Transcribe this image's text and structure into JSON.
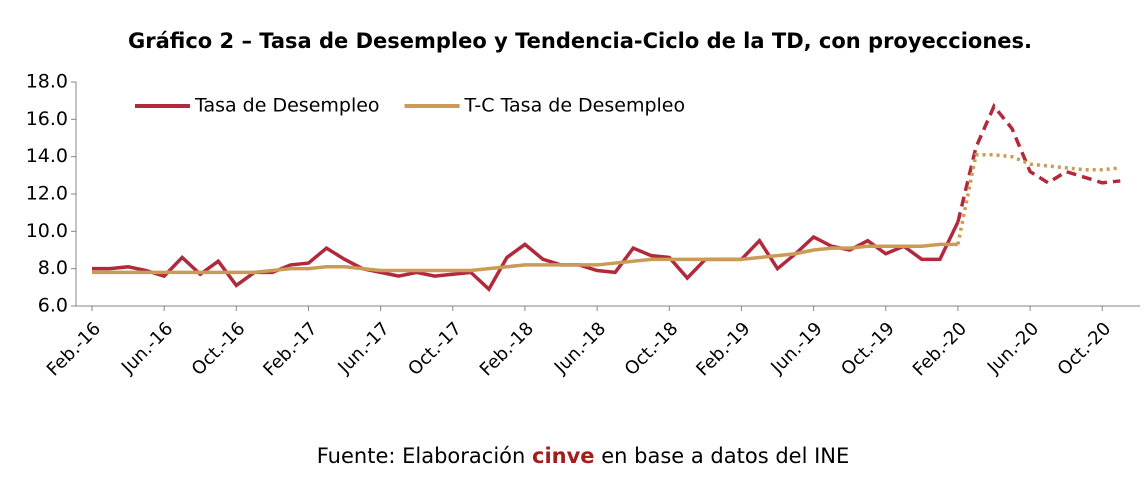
{
  "chart_data": {
    "type": "line",
    "title": "Gráfico 2 – Tasa de Desempleo y Tendencia-Ciclo de la TD, con proyecciones.",
    "categories": [
      "Feb.-16",
      null,
      null,
      null,
      "Jun.-16",
      null,
      null,
      null,
      "Oct.-16",
      null,
      null,
      null,
      "Feb.-17",
      null,
      null,
      null,
      "Jun.-17",
      null,
      null,
      null,
      "Oct.-17",
      null,
      null,
      null,
      "Feb.-18",
      null,
      null,
      null,
      "Jun.-18",
      null,
      null,
      null,
      "Oct.-18",
      null,
      null,
      null,
      "Feb.-19",
      null,
      null,
      null,
      "Jun.-19",
      null,
      null,
      null,
      "Oct.-19",
      null,
      null,
      null,
      "Feb.-20",
      null,
      null,
      null,
      "Jun.-20",
      null,
      null,
      null,
      "Oct.-20",
      null
    ],
    "series": [
      {
        "name": "Tasa de Desempleo",
        "color": "#b12a3c",
        "projection_style": "dashed",
        "values": [
          8.0,
          8.0,
          8.1,
          7.9,
          7.6,
          8.6,
          7.7,
          8.4,
          7.1,
          7.8,
          7.8,
          8.2,
          8.3,
          9.1,
          8.5,
          8.0,
          7.8,
          7.6,
          7.8,
          7.6,
          7.7,
          7.8,
          6.9,
          8.6,
          9.3,
          8.5,
          8.2,
          8.2,
          7.9,
          7.8,
          9.1,
          8.7,
          8.6,
          7.5,
          8.5,
          8.5,
          8.5,
          9.5,
          8.0,
          8.8,
          9.7,
          9.2,
          9.0,
          9.5,
          8.8,
          9.2,
          8.5,
          8.5,
          10.5,
          null,
          null,
          null,
          null,
          null,
          null,
          null,
          null,
          null
        ],
        "projection": [
          null,
          null,
          null,
          null,
          null,
          null,
          null,
          null,
          null,
          null,
          null,
          null,
          null,
          null,
          null,
          null,
          null,
          null,
          null,
          null,
          null,
          null,
          null,
          null,
          null,
          null,
          null,
          null,
          null,
          null,
          null,
          null,
          null,
          null,
          null,
          null,
          null,
          null,
          null,
          null,
          null,
          null,
          null,
          null,
          null,
          null,
          null,
          null,
          null,
          14.5,
          16.7,
          15.5,
          13.2,
          12.6,
          13.2,
          12.9,
          12.6,
          12.7
        ]
      },
      {
        "name": "T-C Tasa de Desempleo",
        "color": "#c99b55",
        "projection_style": "dotted",
        "values": [
          7.8,
          7.8,
          7.8,
          7.8,
          7.8,
          7.8,
          7.8,
          7.8,
          7.8,
          7.8,
          7.9,
          8.0,
          8.0,
          8.1,
          8.1,
          8.0,
          7.9,
          7.9,
          7.9,
          7.9,
          7.9,
          7.9,
          8.0,
          8.1,
          8.2,
          8.2,
          8.2,
          8.2,
          8.2,
          8.3,
          8.4,
          8.5,
          8.5,
          8.5,
          8.5,
          8.5,
          8.5,
          8.6,
          8.7,
          8.8,
          9.0,
          9.1,
          9.1,
          9.2,
          9.2,
          9.2,
          9.2,
          9.3,
          9.3,
          null,
          null,
          null,
          null,
          null,
          null,
          null,
          null,
          null
        ],
        "projection": [
          null,
          null,
          null,
          null,
          null,
          null,
          null,
          null,
          null,
          null,
          null,
          null,
          null,
          null,
          null,
          null,
          null,
          null,
          null,
          null,
          null,
          null,
          null,
          null,
          null,
          null,
          null,
          null,
          null,
          null,
          null,
          null,
          null,
          null,
          null,
          null,
          null,
          null,
          null,
          null,
          null,
          null,
          null,
          null,
          null,
          null,
          null,
          null,
          null,
          14.1,
          14.1,
          14.0,
          13.6,
          13.5,
          13.4,
          13.3,
          13.3,
          13.4
        ]
      }
    ],
    "ylim": [
      6,
      18
    ],
    "yticks": [
      {
        "value": 6,
        "label": "6.0"
      },
      {
        "value": 8,
        "label": "8.0"
      },
      {
        "value": 10,
        "label": "10.0"
      },
      {
        "value": 12,
        "label": "12.0"
      },
      {
        "value": 14,
        "label": "14.0"
      },
      {
        "value": 16,
        "label": "16.0"
      },
      {
        "value": 18,
        "label": "18.0"
      }
    ],
    "grid": false,
    "legend": "top-left",
    "source": {
      "prefix": "Fuente: Elaboración",
      "highlight": "cinve",
      "suffix": "en base a datos del INE"
    }
  }
}
